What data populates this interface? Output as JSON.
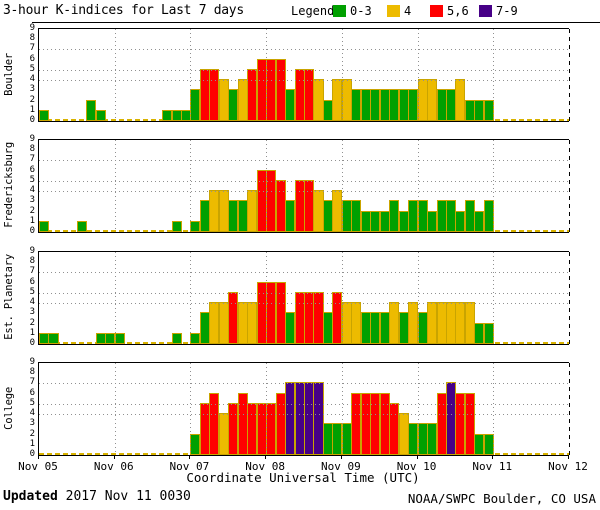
{
  "ui": {
    "legend_label": "Legend:",
    "updated_label": "Updated",
    "updated_value": " 2017 Nov 11 0030",
    "credit": "NOAA/SWPC Boulder, CO USA"
  },
  "colors": {
    "green": "#00A000",
    "yellow": "#EDBB00",
    "red": "#FF0000",
    "purple": "#470087",
    "bar_border": "#C9A400",
    "baseline": "#D9B300",
    "grid": "#909090"
  },
  "chart_data": {
    "type": "bar",
    "title": "3-hour K-indices for Last 7 days",
    "xlabel": "Coordinate Universal Time (UTC)",
    "x_tick_labels": [
      "Nov 05",
      "Nov 06",
      "Nov 07",
      "Nov 08",
      "Nov 09",
      "Nov 10",
      "Nov 11",
      "Nov 12"
    ],
    "slots_per_day": 8,
    "slot_hours": 3,
    "ylim": [
      0,
      9
    ],
    "yticks": [
      0,
      1,
      2,
      3,
      4,
      5,
      6,
      7,
      8,
      9
    ],
    "hgrid_at": [
      4,
      5,
      7
    ],
    "grid": "dotted",
    "legend_position": "top-right",
    "legend": [
      {
        "label": "0-3",
        "color_key": "green"
      },
      {
        "label": "4",
        "color_key": "yellow"
      },
      {
        "label": "5,6",
        "color_key": "red"
      },
      {
        "label": "7-9",
        "color_key": "purple"
      }
    ],
    "color_bins": {
      "green_max": 3,
      "yellow_max": 4,
      "red_max": 6,
      "purple_max": 9
    },
    "panels": [
      {
        "station": "Boulder",
        "k_values": [
          1,
          0,
          0,
          0,
          0,
          2,
          1,
          0,
          0,
          0,
          0,
          0,
          0,
          1,
          1,
          1,
          3,
          5,
          5,
          4,
          3,
          4,
          5,
          6,
          6,
          6,
          3,
          5,
          5,
          4,
          2,
          4,
          4,
          3,
          3,
          3,
          3,
          3,
          3,
          3,
          4,
          4,
          3,
          3,
          4,
          2,
          2,
          2,
          null,
          null,
          null,
          null,
          null,
          null,
          null,
          null
        ]
      },
      {
        "station": "Fredericksburg",
        "k_values": [
          1,
          0,
          0,
          0,
          1,
          0,
          0,
          0,
          0,
          0,
          0,
          0,
          0,
          0,
          1,
          0,
          1,
          3,
          4,
          4,
          3,
          3,
          4,
          6,
          6,
          5,
          3,
          5,
          5,
          4,
          3,
          4,
          3,
          3,
          2,
          2,
          2,
          3,
          2,
          3,
          3,
          2,
          3,
          3,
          2,
          3,
          2,
          3,
          null,
          null,
          null,
          null,
          null,
          null,
          null,
          null
        ]
      },
      {
        "station": "Est. Planetary",
        "k_values": [
          1,
          1,
          0,
          0,
          0,
          0,
          1,
          1,
          1,
          0,
          0,
          0,
          0,
          0,
          1,
          0,
          1,
          3,
          4,
          4,
          5,
          4,
          4,
          6,
          6,
          6,
          3,
          5,
          5,
          5,
          3,
          5,
          4,
          4,
          3,
          3,
          3,
          4,
          3,
          4,
          3,
          4,
          4,
          4,
          4,
          4,
          2,
          2,
          null,
          null,
          null,
          null,
          null,
          null,
          null,
          null
        ]
      },
      {
        "station": "College",
        "k_values": [
          0,
          0,
          0,
          0,
          0,
          0,
          0,
          0,
          0,
          0,
          0,
          0,
          0,
          0,
          0,
          0,
          2,
          5,
          6,
          4,
          5,
          6,
          5,
          5,
          5,
          6,
          7,
          7,
          7,
          7,
          3,
          3,
          3,
          6,
          6,
          6,
          6,
          5,
          4,
          3,
          3,
          3,
          6,
          7,
          6,
          6,
          2,
          2,
          null,
          null,
          null,
          null,
          null,
          null,
          null,
          null
        ]
      }
    ]
  }
}
